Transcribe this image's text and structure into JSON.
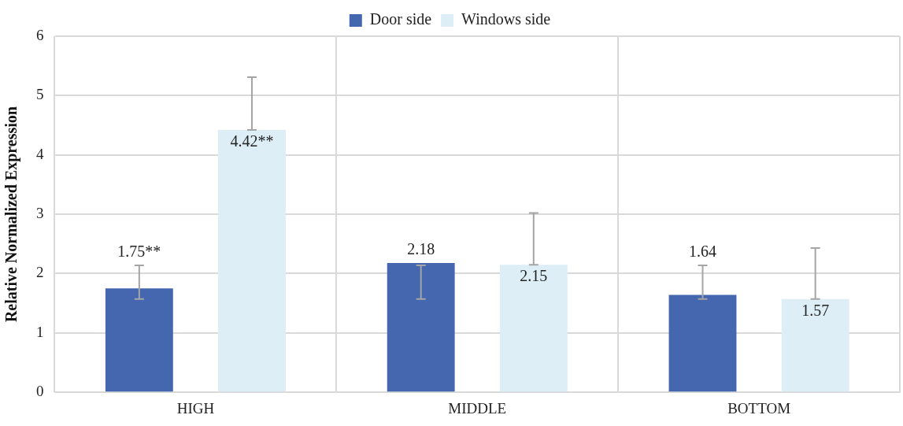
{
  "chart_data": {
    "type": "bar",
    "ylabel": "Relative Normalized Expression",
    "categories": [
      "HIGH",
      "MIDDLE",
      "BOTTOM"
    ],
    "series": [
      {
        "name": "Door side",
        "color": "#4467b0",
        "values": [
          1.75,
          2.18,
          1.64
        ],
        "errors": [
          [
            1.57,
            2.14
          ],
          [
            1.57,
            2.14
          ],
          [
            1.57,
            2.14
          ]
        ],
        "value_labels": [
          "1.75**",
          "2.18",
          "1.64"
        ]
      },
      {
        "name": "Windows side",
        "color": "#ddeef7",
        "values": [
          4.42,
          2.15,
          1.57
        ],
        "errors": [
          [
            4.42,
            5.31
          ],
          [
            2.15,
            3.02
          ],
          [
            1.57,
            2.43
          ]
        ],
        "value_labels": [
          "4.42**",
          "2.15",
          "1.57"
        ]
      }
    ],
    "ylim": [
      0,
      6
    ],
    "yticks": [
      0,
      1,
      2,
      3,
      4,
      5,
      6
    ],
    "grid": true,
    "legend": "top"
  }
}
